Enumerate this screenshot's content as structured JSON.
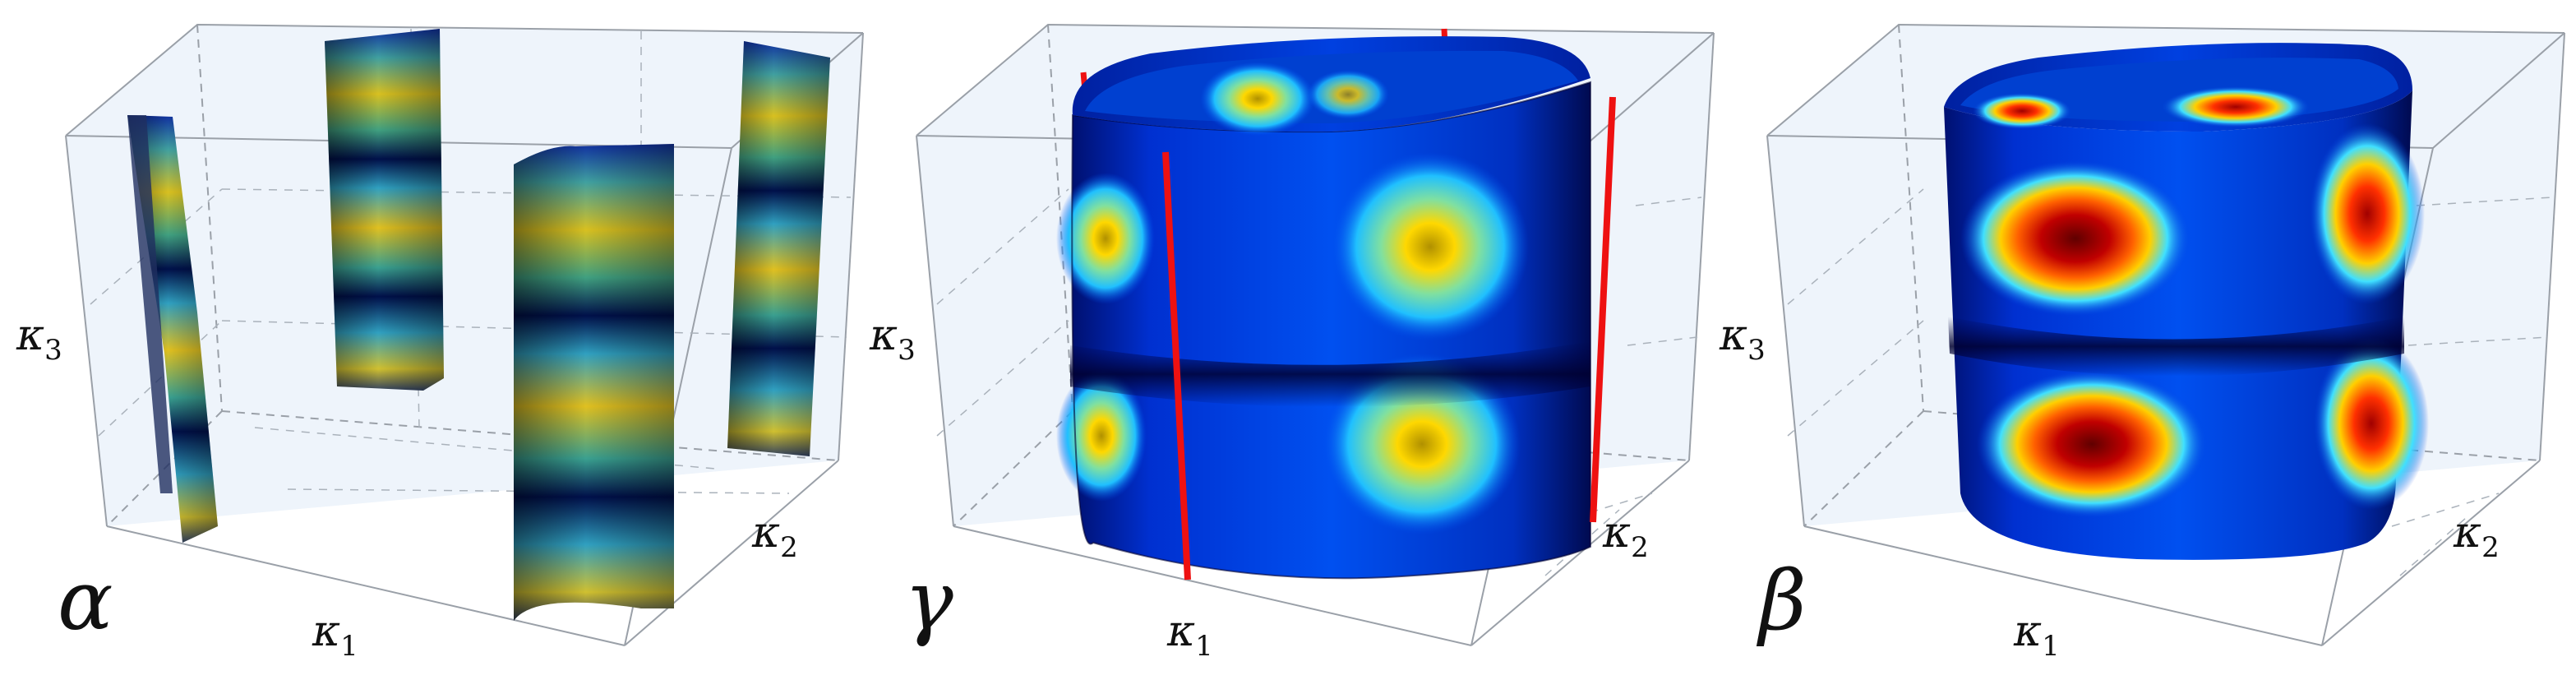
{
  "panels": [
    {
      "id": "alpha",
      "label": "α",
      "axis_x": "κ",
      "axis_x_sub": "1",
      "axis_y": "κ",
      "axis_y_sub": "2",
      "axis_z": "κ",
      "axis_z_sub": "3"
    },
    {
      "id": "gamma",
      "label": "γ",
      "axis_x": "κ",
      "axis_x_sub": "1",
      "axis_y": "κ",
      "axis_y_sub": "2",
      "axis_z": "κ",
      "axis_z_sub": "3"
    },
    {
      "id": "beta",
      "label": "β",
      "axis_x": "κ",
      "axis_x_sub": "1",
      "axis_y": "κ",
      "axis_y_sub": "2",
      "axis_z": "κ",
      "axis_z_sub": "3"
    }
  ],
  "colors": {
    "box_face": "#eef4fb",
    "box_edge": "#9aa0a8",
    "grid": "#aab2bb",
    "red_line": "#ee1111",
    "colormap": [
      "#00007f",
      "#0000ff",
      "#00a0ff",
      "#00ffff",
      "#80c060",
      "#ffd000",
      "#ff6000",
      "#cc0000",
      "#7f0000"
    ]
  }
}
